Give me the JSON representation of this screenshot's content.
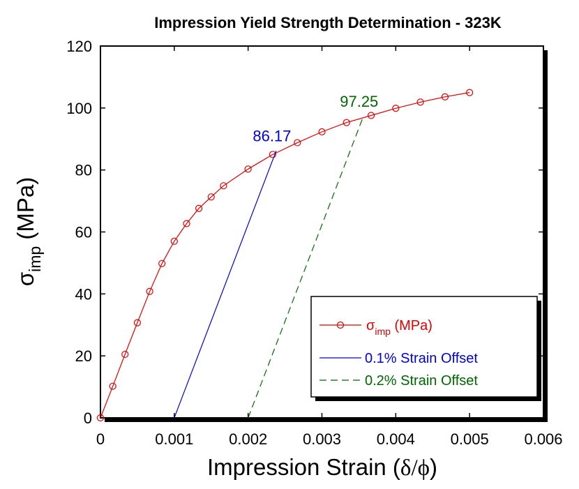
{
  "chart_data": {
    "type": "line",
    "title": "Impression Yield Strength Determination - 323K",
    "xlabel": "Impression Strain (δ/ϕ)",
    "xlabel_parts": {
      "main": "Impression Strain (",
      "sym": "δ/ϕ",
      "close": ")"
    },
    "ylabel": "σimp (MPa)",
    "ylabel_parts": {
      "sym": "σ",
      "sub": "imp",
      "rest": " (MPa)"
    },
    "xlim": [
      0,
      0.006
    ],
    "ylim": [
      0,
      120
    ],
    "x_ticks": [
      0,
      0.001,
      0.002,
      0.003,
      0.004,
      0.005,
      0.006
    ],
    "x_tick_labels": [
      "0",
      "0.001",
      "0.002",
      "0.003",
      "0.004",
      "0.005",
      "0.006"
    ],
    "y_ticks": [
      0,
      20,
      40,
      60,
      80,
      100,
      120
    ],
    "y_tick_labels": [
      "0",
      "20",
      "40",
      "60",
      "80",
      "100",
      "120"
    ],
    "grid": false,
    "legend_position": "bottom-right",
    "series": [
      {
        "name": "σimp (MPa)",
        "name_parts": {
          "sym": "σ",
          "sub": "imp",
          "rest": " (MPa)"
        },
        "color": "#e00000",
        "style": "solid-circle-markers",
        "x": [
          0,
          0.000167,
          0.000333,
          0.0005,
          0.000667,
          0.000833,
          0.001,
          0.001167,
          0.001333,
          0.0015,
          0.001667,
          0.002,
          0.002333,
          0.002667,
          0.003,
          0.003333,
          0.003667,
          0.004,
          0.004333,
          0.004667,
          0.005
        ],
        "y": [
          0,
          10.2,
          20.5,
          30.7,
          40.8,
          49.8,
          57.0,
          62.7,
          67.6,
          71.3,
          74.9,
          80.3,
          85.0,
          88.8,
          92.3,
          95.3,
          97.6,
          99.9,
          101.9,
          103.6,
          105.0
        ]
      },
      {
        "name": "0.1% Strain Offset",
        "color": "#0000dd",
        "style": "solid",
        "x": [
          0.001,
          0.00238
        ],
        "y": [
          0,
          86.17
        ]
      },
      {
        "name": "0.2% Strain Offset",
        "color": "#006600",
        "style": "dashed",
        "x": [
          0.002,
          0.00356
        ],
        "y": [
          0,
          97.25
        ]
      }
    ],
    "annotations": [
      {
        "text": "86.17",
        "color": "#0000dd",
        "x": 0.00238,
        "y": 86.17
      },
      {
        "text": "97.25",
        "color": "#006600",
        "x": 0.00356,
        "y": 97.25
      }
    ]
  }
}
